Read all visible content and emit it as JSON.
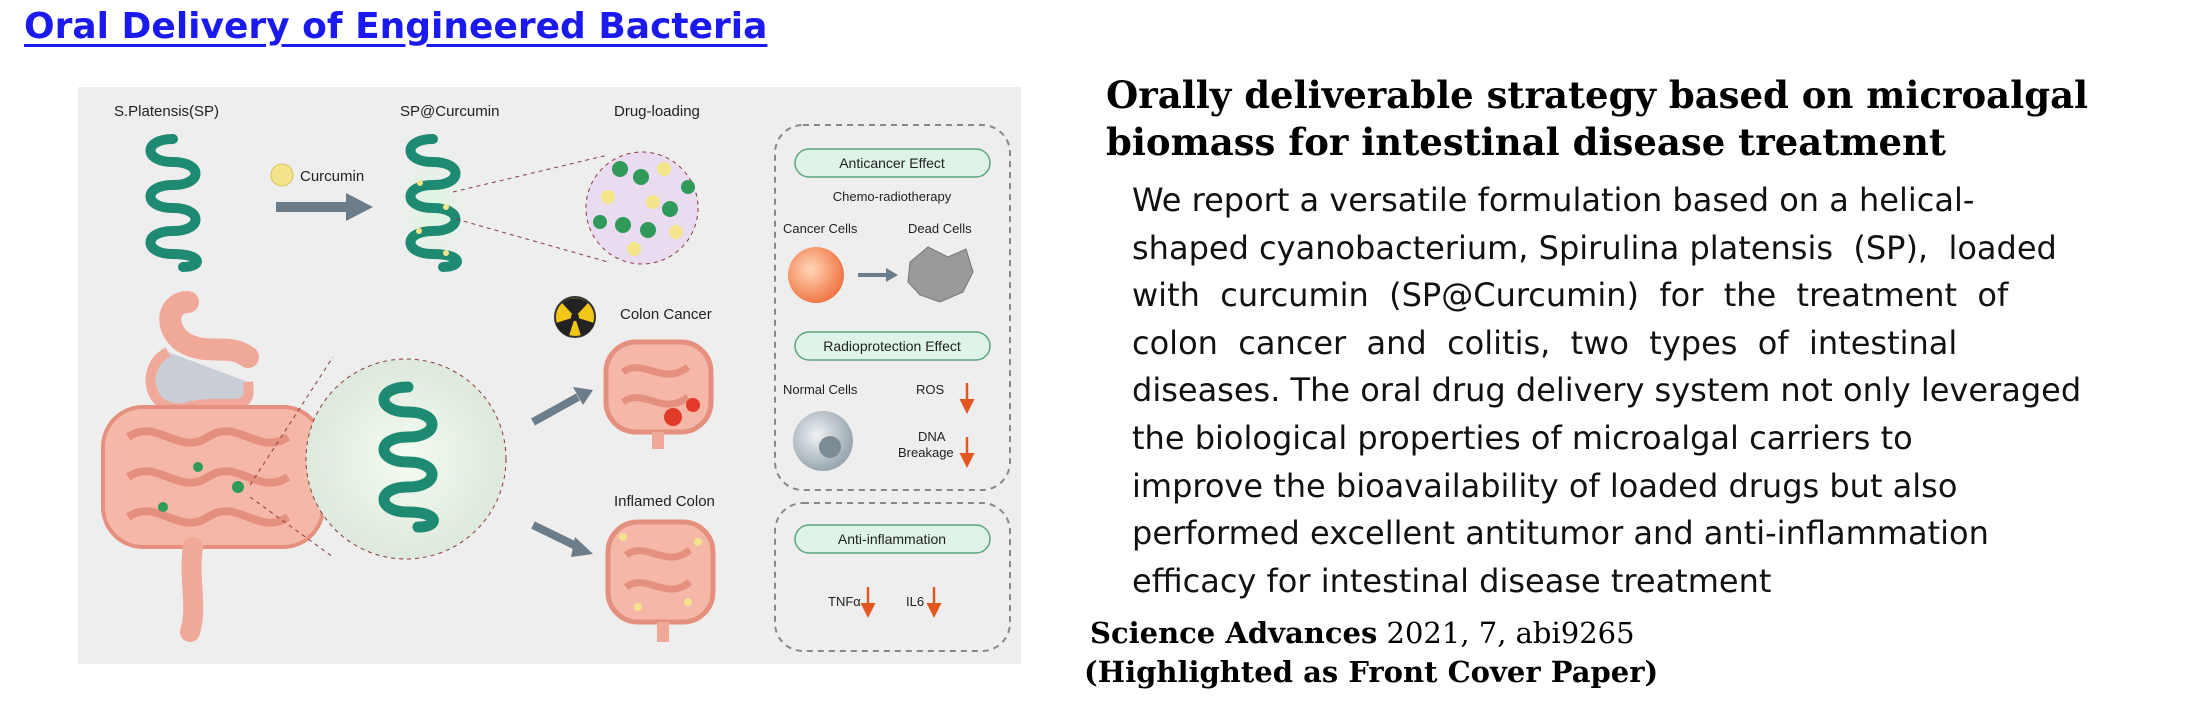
{
  "slide": {
    "title": "Oral Delivery of Engineered  Bacteria"
  },
  "figure": {
    "label_sp": "S.Platensis(SP)",
    "label_curcumin": "Curcumin",
    "label_sp_curcumin": "SP@Curcumin",
    "label_drug_loading": "Drug-loading",
    "label_colon_cancer": "Colon Cancer",
    "label_inflamed_colon": "Inflamed Colon",
    "panel_anticancer": {
      "badge": "Anticancer Effect",
      "subtitle": "Chemo-radiotherapy",
      "cancer_cells": "Cancer Cells",
      "dead_cells": "Dead Cells"
    },
    "panel_radioprotection": {
      "badge": "Radioprotection Effect",
      "normal_cells": "Normal Cells",
      "ros": "ROS",
      "dna_line1": "DNA",
      "dna_line2": "Breakage"
    },
    "panel_antiinflammation": {
      "badge": "Anti-inflammation",
      "tnf": "TNFα",
      "il6": "IL6"
    },
    "colors": {
      "spirulina": "#1f8a72",
      "glow": "#b9f0c6",
      "curcumin": "#f3e48a",
      "badge_fill": "#dff3e8",
      "arrow_gray": "#6b7c8a",
      "down_arrow": "#e2571f",
      "cancer_cell": "#f08050",
      "dead_cell": "#9a9a9a",
      "normal_cell": "#a8b4bc",
      "intestine": "#f0a898"
    }
  },
  "paper": {
    "title": "Orally deliverable strategy based on microalgal biomass for intestinal disease treatment",
    "abstract_lines": [
      "We report a versatile formulation based on a helical-",
      "shaped cyanobacterium, Spirulina platensis  (SP),  loaded",
      "with  curcumin  (SP@Curcumin)  for  the  treatment  of",
      "colon  cancer  and  colitis,  two  types  of  intestinal",
      "diseases. The oral drug delivery system not only leveraged",
      "the biological properties of microalgal carriers to",
      "improve the bioavailability of loaded drugs but also",
      "performed excellent antitumor and anti-inflammation",
      "efficacy for intestinal disease treatment"
    ],
    "journal": "Science Advances",
    "citation_rest": " 2021, 7, abi9265",
    "highlight": "(Highlighted as Front Cover Paper)"
  }
}
